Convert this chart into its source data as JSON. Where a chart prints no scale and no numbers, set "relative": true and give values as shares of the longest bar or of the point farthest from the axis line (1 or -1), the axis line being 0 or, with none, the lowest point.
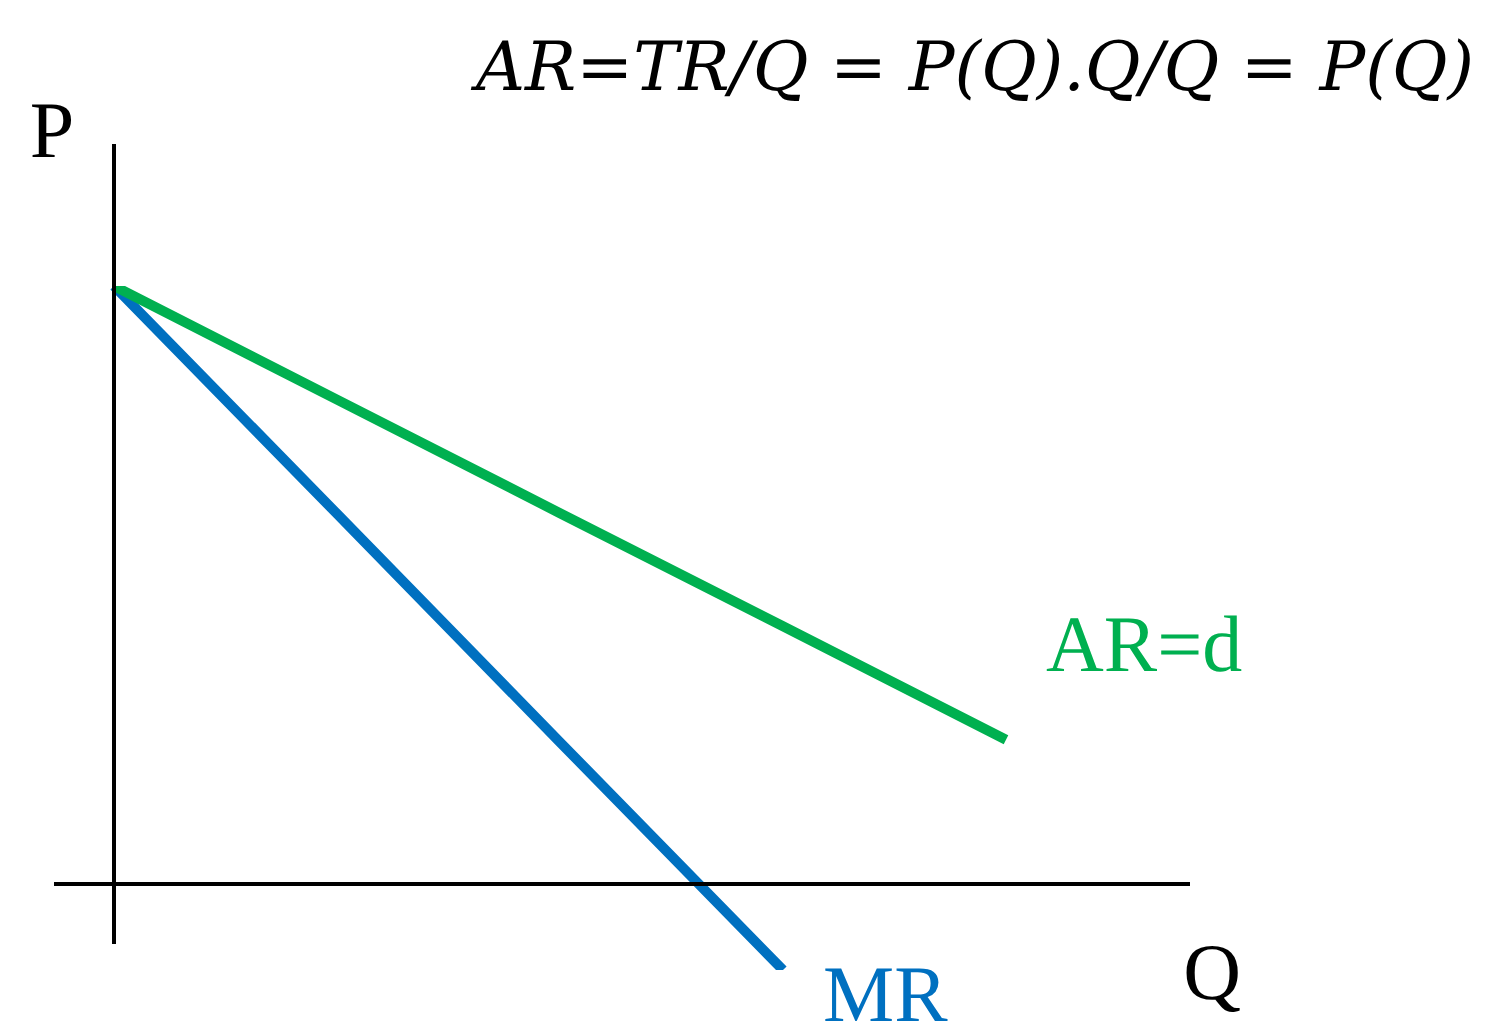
{
  "chart_data": {
    "type": "line",
    "title": "AR=TR/Q = P(Q).Q/Q = P(Q)",
    "xlabel": "Q",
    "ylabel": "P",
    "relative": true,
    "categories": [
      null,
      null,
      null,
      null,
      null
    ],
    "series": [
      {
        "name": "AR=d",
        "color": "#00b050",
        "values": [
          1,
          0.81,
          0.62,
          0.431,
          0.241
        ]
      },
      {
        "name": "MR",
        "color": "#0070c0",
        "values": [
          1,
          0.619,
          0.237,
          -0.144,
          null
        ]
      }
    ],
    "legend": false,
    "marker": "none",
    "line_style": "solid"
  }
}
